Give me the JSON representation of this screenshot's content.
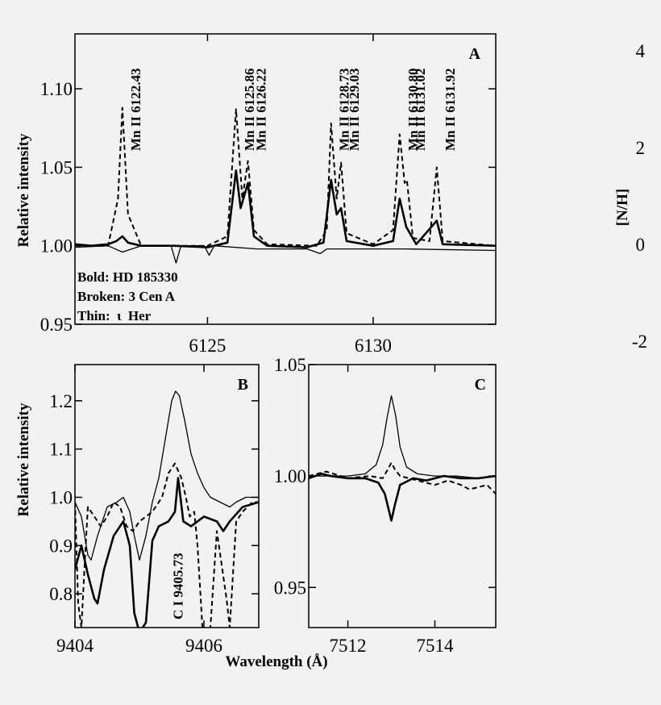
{
  "colors": {
    "background": "#f2f2f2",
    "ink": "#000000"
  },
  "chart_data": [
    {
      "type": "line",
      "panel_label": "A",
      "ylabel": "Relative intensity",
      "xlim": [
        6121,
        6133.7
      ],
      "ylim": [
        0.95,
        1.135
      ],
      "x_ticks": [
        6125,
        6130
      ],
      "y_ticks": [
        0.95,
        1.0,
        1.05,
        1.1
      ],
      "x_tick_labels": [
        "6125",
        "6130"
      ],
      "y_tick_labels": [
        "0.95",
        "1.00",
        "1.05",
        "1.10"
      ],
      "line_labels": [
        "Mn II 6122.43",
        "Mn II 6125.86",
        "Mn II 6126.22",
        "Mn II 6128.73",
        "Mn II 6129.03",
        "Mn II 6130.80",
        "Mn II 6131.02",
        "Mn II 6131.92"
      ],
      "line_label_positions": [
        6122.43,
        6125.86,
        6126.22,
        6128.73,
        6129.03,
        6130.8,
        6131.02,
        6131.92
      ],
      "legend": [
        "Bold: HD 185330",
        "Broken: 3 Cen A",
        "Thin:  ι  Her"
      ],
      "legend_position": "bottom-left",
      "series": [
        {
          "style": "bold",
          "points": [
            [
              6121,
              1.001
            ],
            [
              6121.5,
              1.0
            ],
            [
              6122.0,
              1.001
            ],
            [
              6122.25,
              1.003
            ],
            [
              6122.43,
              1.006
            ],
            [
              6122.6,
              1.002
            ],
            [
              6123.0,
              1.0
            ],
            [
              6124.0,
              1.0
            ],
            [
              6125.0,
              0.999
            ],
            [
              6125.6,
              1.002
            ],
            [
              6125.86,
              1.048
            ],
            [
              6126.0,
              1.024
            ],
            [
              6126.22,
              1.04
            ],
            [
              6126.4,
              1.006
            ],
            [
              6126.8,
              1.0
            ],
            [
              6128.0,
              0.999
            ],
            [
              6128.5,
              1.002
            ],
            [
              6128.73,
              1.042
            ],
            [
              6128.9,
              1.02
            ],
            [
              6129.03,
              1.024
            ],
            [
              6129.2,
              1.003
            ],
            [
              6130.0,
              1.0
            ],
            [
              6130.6,
              1.003
            ],
            [
              6130.8,
              1.03
            ],
            [
              6131.0,
              1.012
            ],
            [
              6131.3,
              1.001
            ],
            [
              6131.92,
              1.016
            ],
            [
              6132.1,
              1.001
            ],
            [
              6133.7,
              1.0
            ]
          ]
        },
        {
          "style": "dashed",
          "points": [
            [
              6121,
              1.0
            ],
            [
              6122.0,
              1.0
            ],
            [
              6122.3,
              1.03
            ],
            [
              6122.43,
              1.088
            ],
            [
              6122.6,
              1.02
            ],
            [
              6123.0,
              1.0
            ],
            [
              6125.0,
              1.0
            ],
            [
              6125.6,
              1.006
            ],
            [
              6125.86,
              1.087
            ],
            [
              6126.05,
              1.03
            ],
            [
              6126.22,
              1.054
            ],
            [
              6126.4,
              1.01
            ],
            [
              6126.8,
              1.001
            ],
            [
              6128.3,
              1.0
            ],
            [
              6128.6,
              1.01
            ],
            [
              6128.73,
              1.078
            ],
            [
              6128.9,
              1.03
            ],
            [
              6129.03,
              1.053
            ],
            [
              6129.2,
              1.008
            ],
            [
              6130.0,
              1.001
            ],
            [
              6130.6,
              1.01
            ],
            [
              6130.8,
              1.071
            ],
            [
              6130.95,
              1.04
            ],
            [
              6131.02,
              1.042
            ],
            [
              6131.2,
              1.005
            ],
            [
              6131.7,
              1.003
            ],
            [
              6131.92,
              1.05
            ],
            [
              6132.1,
              1.003
            ],
            [
              6133.7,
              1.0
            ]
          ]
        },
        {
          "style": "thin",
          "points": [
            [
              6121,
              0.999
            ],
            [
              6122.0,
              1.0
            ],
            [
              6122.43,
              0.996
            ],
            [
              6123.0,
              1.0
            ],
            [
              6123.9,
              1.0
            ],
            [
              6124.05,
              0.989
            ],
            [
              6124.2,
              1.0
            ],
            [
              6124.9,
              1.0
            ],
            [
              6125.05,
              0.994
            ],
            [
              6125.2,
              1.0
            ],
            [
              6126.5,
              0.998
            ],
            [
              6128.0,
              0.998
            ],
            [
              6128.4,
              0.995
            ],
            [
              6128.6,
              0.998
            ],
            [
              6130.0,
              0.998
            ],
            [
              6131.0,
              0.998
            ],
            [
              6133.7,
              0.997
            ]
          ]
        }
      ]
    },
    {
      "type": "line",
      "panel_label": "B",
      "ylabel": "Relative intensity",
      "xlim": [
        9404,
        9406.85
      ],
      "ylim": [
        0.73,
        1.275
      ],
      "x_ticks": [
        9404,
        9406
      ],
      "y_ticks": [
        0.8,
        0.9,
        1.0,
        1.1,
        1.2
      ],
      "x_tick_labels": [
        "9404",
        "9406"
      ],
      "y_tick_labels": [
        "0.8",
        "0.9",
        "1.0",
        "1.1",
        "1.2"
      ],
      "annotation": "C I 9405.73",
      "annotation_x": 9405.73,
      "series": [
        {
          "style": "bold",
          "points": [
            [
              9404.0,
              0.85
            ],
            [
              9404.1,
              0.9
            ],
            [
              9404.2,
              0.84
            ],
            [
              9404.3,
              0.79
            ],
            [
              9404.35,
              0.78
            ],
            [
              9404.45,
              0.85
            ],
            [
              9404.6,
              0.92
            ],
            [
              9404.75,
              0.95
            ],
            [
              9404.85,
              0.9
            ],
            [
              9404.92,
              0.76
            ],
            [
              9405.0,
              0.72
            ],
            [
              9405.1,
              0.74
            ],
            [
              9405.2,
              0.91
            ],
            [
              9405.3,
              0.94
            ],
            [
              9405.45,
              0.95
            ],
            [
              9405.55,
              0.97
            ],
            [
              9405.6,
              1.04
            ],
            [
              9405.68,
              0.95
            ],
            [
              9405.8,
              0.94
            ],
            [
              9406.0,
              0.96
            ],
            [
              9406.2,
              0.95
            ],
            [
              9406.3,
              0.93
            ],
            [
              9406.4,
              0.95
            ],
            [
              9406.6,
              0.98
            ],
            [
              9406.85,
              0.99
            ]
          ]
        },
        {
          "style": "dashed",
          "points": [
            [
              9404.0,
              0.99
            ],
            [
              9404.05,
              0.78
            ],
            [
              9404.1,
              0.73
            ],
            [
              9404.15,
              0.86
            ],
            [
              9404.2,
              0.98
            ],
            [
              9404.3,
              0.96
            ],
            [
              9404.4,
              0.94
            ],
            [
              9404.5,
              0.96
            ],
            [
              9404.6,
              0.99
            ],
            [
              9404.7,
              0.98
            ],
            [
              9404.8,
              0.94
            ],
            [
              9404.9,
              0.93
            ],
            [
              9405.0,
              0.95
            ],
            [
              9405.2,
              0.97
            ],
            [
              9405.35,
              1.0
            ],
            [
              9405.45,
              1.05
            ],
            [
              9405.55,
              1.07
            ],
            [
              9405.65,
              1.04
            ],
            [
              9405.72,
              1.0
            ],
            [
              9405.78,
              0.96
            ],
            [
              9405.85,
              0.97
            ],
            [
              9405.9,
              0.9
            ],
            [
              9405.95,
              0.79
            ],
            [
              9405.98,
              0.72
            ],
            [
              9406.1,
              0.73
            ],
            [
              9406.2,
              0.93
            ],
            [
              9406.35,
              0.79
            ],
            [
              9406.4,
              0.73
            ],
            [
              9406.5,
              0.95
            ],
            [
              9406.6,
              0.97
            ],
            [
              9406.75,
              0.99
            ],
            [
              9406.85,
              0.99
            ]
          ]
        },
        {
          "style": "thin",
          "points": [
            [
              9404.0,
              0.99
            ],
            [
              9404.1,
              0.96
            ],
            [
              9404.2,
              0.88
            ],
            [
              9404.25,
              0.87
            ],
            [
              9404.35,
              0.92
            ],
            [
              9404.5,
              0.98
            ],
            [
              9404.65,
              0.99
            ],
            [
              9404.75,
              1.0
            ],
            [
              9404.85,
              0.97
            ],
            [
              9404.92,
              0.92
            ],
            [
              9405.0,
              0.87
            ],
            [
              9405.1,
              0.92
            ],
            [
              9405.2,
              0.99
            ],
            [
              9405.3,
              1.04
            ],
            [
              9405.4,
              1.12
            ],
            [
              9405.5,
              1.2
            ],
            [
              9405.56,
              1.22
            ],
            [
              9405.62,
              1.21
            ],
            [
              9405.7,
              1.16
            ],
            [
              9405.8,
              1.09
            ],
            [
              9405.9,
              1.05
            ],
            [
              9406.0,
              1.02
            ],
            [
              9406.1,
              1.0
            ],
            [
              9406.25,
              0.99
            ],
            [
              9406.4,
              0.98
            ],
            [
              9406.5,
              0.99
            ],
            [
              9406.65,
              1.0
            ],
            [
              9406.85,
              1.0
            ]
          ]
        }
      ]
    },
    {
      "type": "line",
      "panel_label": "C",
      "xlim": [
        7511.1,
        7515.4
      ],
      "ylim": [
        0.932,
        1.05
      ],
      "x_ticks": [
        7512,
        7514
      ],
      "y_ticks": [
        0.95,
        1.0,
        1.05
      ],
      "x_tick_labels": [
        "7512",
        "7514"
      ],
      "y_tick_labels": [
        "0.95",
        "1.00",
        "1.05"
      ],
      "xlabel": "Wavelength (Å)",
      "series": [
        {
          "style": "bold",
          "points": [
            [
              7511.1,
              0.999
            ],
            [
              7511.4,
              1.001
            ],
            [
              7511.6,
              1.0
            ],
            [
              7512.0,
              0.999
            ],
            [
              7512.4,
              0.999
            ],
            [
              7512.7,
              0.997
            ],
            [
              7512.85,
              0.992
            ],
            [
              7512.95,
              0.984
            ],
            [
              7513.0,
              0.98
            ],
            [
              7513.08,
              0.987
            ],
            [
              7513.2,
              0.996
            ],
            [
              7513.5,
              0.999
            ],
            [
              7513.8,
              0.998
            ],
            [
              7514.2,
              1.0
            ],
            [
              7514.6,
              0.999
            ],
            [
              7515.0,
              0.999
            ],
            [
              7515.4,
              1.0
            ]
          ]
        },
        {
          "style": "dashed",
          "points": [
            [
              7511.1,
              1.0
            ],
            [
              7511.5,
              1.002
            ],
            [
              7512.0,
              0.999
            ],
            [
              7512.5,
              1.0
            ],
            [
              7512.8,
              0.999
            ],
            [
              7512.92,
              1.003
            ],
            [
              7513.0,
              1.006
            ],
            [
              7513.08,
              1.003
            ],
            [
              7513.2,
              1.0
            ],
            [
              7513.6,
              0.998
            ],
            [
              7514.0,
              0.996
            ],
            [
              7514.3,
              0.998
            ],
            [
              7514.6,
              0.996
            ],
            [
              7514.8,
              0.994
            ],
            [
              7515.0,
              0.995
            ],
            [
              7515.2,
              0.996
            ],
            [
              7515.4,
              0.992
            ]
          ]
        },
        {
          "style": "thin",
          "points": [
            [
              7511.1,
              1.0
            ],
            [
              7511.5,
              1.0
            ],
            [
              7512.0,
              1.0
            ],
            [
              7512.4,
              1.001
            ],
            [
              7512.65,
              1.005
            ],
            [
              7512.8,
              1.014
            ],
            [
              7512.9,
              1.026
            ],
            [
              7513.0,
              1.036
            ],
            [
              7513.1,
              1.027
            ],
            [
              7513.2,
              1.013
            ],
            [
              7513.35,
              1.004
            ],
            [
              7513.6,
              1.001
            ],
            [
              7514.0,
              1.0
            ],
            [
              7514.5,
              1.0
            ],
            [
              7515.0,
              0.999
            ],
            [
              7515.4,
              1.0
            ]
          ]
        }
      ]
    },
    {
      "type": "scatter",
      "panel_label": "",
      "ylabel": "[N/H]",
      "y_tick_labels": [
        "4",
        "2",
        "0",
        "-2"
      ],
      "note": "cropped neighbouring panel at right edge; only y tick labels and axis label visible"
    }
  ]
}
